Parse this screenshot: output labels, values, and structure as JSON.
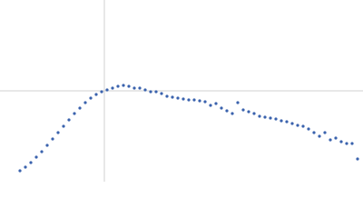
{
  "chart_data": {
    "type": "scatter",
    "x": [
      22,
      28,
      34,
      40,
      46,
      52,
      58,
      64,
      70,
      76,
      82,
      88,
      94,
      100,
      106,
      112,
      118,
      124,
      130,
      136,
      142,
      148,
      154,
      160,
      166,
      172,
      178,
      184,
      190,
      196,
      202,
      208,
      214,
      220,
      226,
      232,
      238,
      244,
      250,
      256,
      262,
      268,
      274,
      280,
      286,
      292,
      298,
      304,
      310,
      316,
      322,
      328,
      334,
      340,
      346,
      352,
      358,
      364,
      370,
      376,
      382,
      388,
      394
    ],
    "series": [
      {
        "color": "#3a62ad",
        "values": [
          12,
          16,
          21,
          27,
          33,
          40,
          47,
          54,
          61,
          68,
          75,
          81,
          87,
          92,
          96,
          99,
          101,
          103,
          105,
          106,
          105,
          103,
          103,
          101,
          99,
          99,
          97,
          94,
          93,
          92,
          91,
          90,
          90,
          89,
          88,
          84,
          86,
          81,
          78,
          75,
          87,
          79,
          77,
          75,
          72,
          71,
          70,
          69,
          67,
          66,
          64,
          62,
          61,
          58,
          54,
          50,
          54,
          46,
          48,
          44,
          42,
          42,
          25
        ]
      }
    ],
    "xlim": [
      0,
      400
    ],
    "ylim": [
      0,
      200
    ],
    "reference_lines": {
      "x": [
        115
      ],
      "y": [
        100
      ],
      "color": "#d0d0d0"
    }
  }
}
